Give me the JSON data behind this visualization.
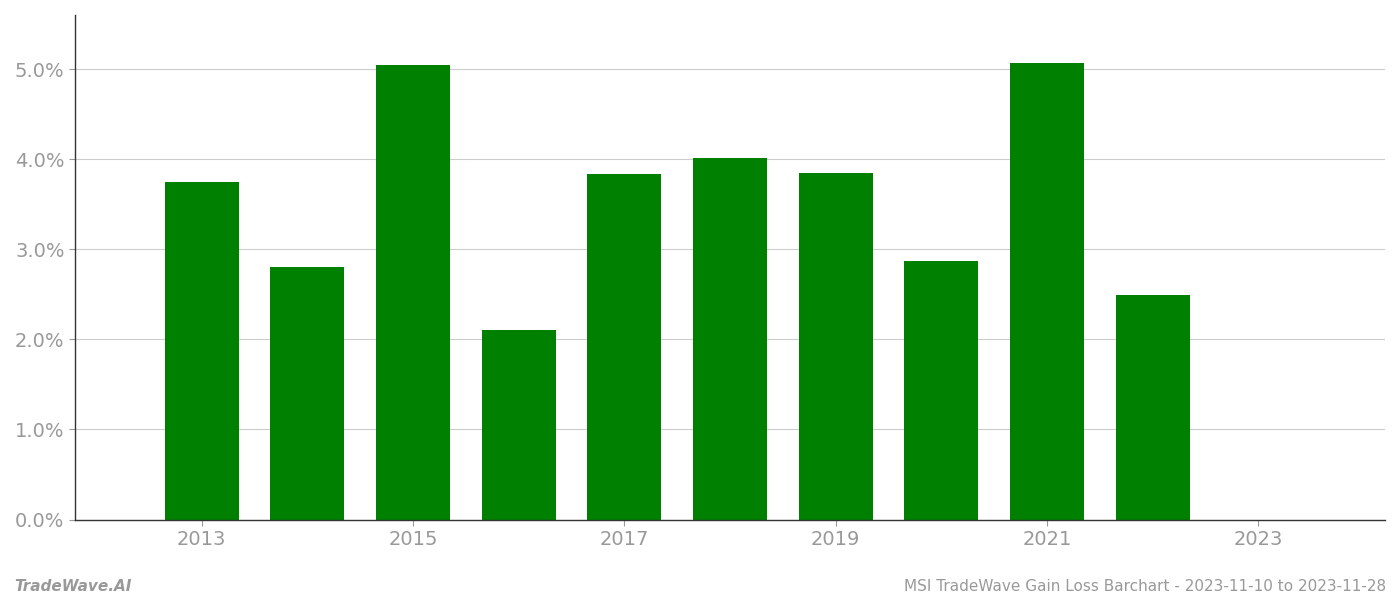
{
  "years": [
    2013,
    2014,
    2015,
    2016,
    2017,
    2018,
    2019,
    2020,
    2021,
    2022
  ],
  "values": [
    0.0375,
    0.028,
    0.0505,
    0.021,
    0.0383,
    0.0401,
    0.0385,
    0.0287,
    0.0507,
    0.0249
  ],
  "bar_color": "#008000",
  "background_color": "#ffffff",
  "footer_left": "TradeWave.AI",
  "footer_right": "MSI TradeWave Gain Loss Barchart - 2023-11-10 to 2023-11-28",
  "ylim": [
    0.0,
    0.056
  ],
  "yticks": [
    0.0,
    0.01,
    0.02,
    0.03,
    0.04,
    0.05
  ],
  "grid_color": "#cccccc",
  "tick_color": "#999999",
  "spine_color": "#333333",
  "footer_font_size": 11,
  "bar_width": 0.7,
  "xlim_left": 2011.8,
  "xlim_right": 2024.2
}
